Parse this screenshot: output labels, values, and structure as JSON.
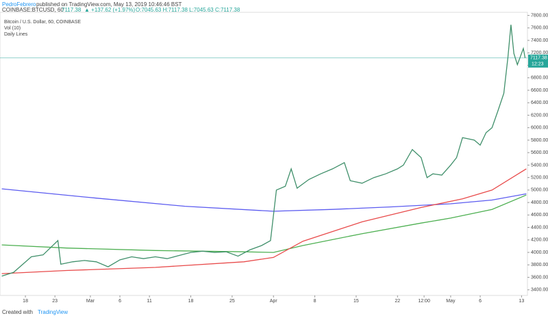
{
  "header": {
    "author": "PedroFebrero",
    "published": "published on TradingView.com, May 13, 2019 10:46:46 BST"
  },
  "footer": {
    "created": "Created with",
    "brand": "TradingView"
  },
  "chart_data": {
    "type": "line",
    "symbol": "COINBASE:BTCUSD, 60",
    "change": "▲ +137.62 (+1.97%)",
    "ohlc": "O:7045.63 H:7117.38 L:7045.63 C:7117.38",
    "title": "Bitcoin / U.S. Dollar, 60, COINBASE",
    "indicators": [
      "Vol (10)",
      "Daily Lines"
    ],
    "last_price": 7117.38,
    "countdown": "12:23",
    "xlim": [
      13.7,
      103
    ],
    "xticks": [
      {
        "value": 18,
        "label": "18"
      },
      {
        "value": 23,
        "label": "23"
      },
      {
        "value": 29,
        "label": "Mar"
      },
      {
        "value": 34,
        "label": "6"
      },
      {
        "value": 39,
        "label": "11"
      },
      {
        "value": 46,
        "label": "18"
      },
      {
        "value": 53,
        "label": "25"
      },
      {
        "value": 60,
        "label": "Apr"
      },
      {
        "value": 67,
        "label": "8"
      },
      {
        "value": 74,
        "label": "15"
      },
      {
        "value": 81,
        "label": "22"
      },
      {
        "value": 85.5,
        "label": "12:00"
      },
      {
        "value": 90,
        "label": "May"
      },
      {
        "value": 95,
        "label": "6"
      },
      {
        "value": 102,
        "label": "13"
      }
    ],
    "ylim": [
      3310,
      7850
    ],
    "yticks": [
      {
        "value": 3400,
        "label": "3400.00"
      },
      {
        "value": 3600,
        "label": "3600.00"
      },
      {
        "value": 3800,
        "label": "3800.00"
      },
      {
        "value": 4000,
        "label": "4000.00"
      },
      {
        "value": 4200,
        "label": "4200.00"
      },
      {
        "value": 4400,
        "label": "4400.00"
      },
      {
        "value": 4600,
        "label": "4600.00"
      },
      {
        "value": 4800,
        "label": "4800.00"
      },
      {
        "value": 5000,
        "label": "5000.00"
      },
      {
        "value": 5200,
        "label": "5200.00"
      },
      {
        "value": 5400,
        "label": "5400.00"
      },
      {
        "value": 5600,
        "label": "5600.00"
      },
      {
        "value": 5800,
        "label": "5800.00"
      },
      {
        "value": 6000,
        "label": "6000.00"
      },
      {
        "value": 6200,
        "label": "6200.00"
      },
      {
        "value": 6400,
        "label": "6400.00"
      },
      {
        "value": 6600,
        "label": "6600.00"
      },
      {
        "value": 6800,
        "label": "6800.00"
      },
      {
        "value": 7000,
        "label": "7000.00"
      },
      {
        "value": 7200,
        "label": "7200.00"
      },
      {
        "value": 7400,
        "label": "7400.00"
      },
      {
        "value": 7600,
        "label": "7600.00"
      },
      {
        "value": 7800,
        "label": "7800.00"
      }
    ],
    "series": [
      {
        "color": "#5b5bf0",
        "x": [
          14,
          30,
          45,
          60,
          70,
          80,
          90,
          97,
          102.8
        ],
        "values": [
          5020,
          4870,
          4740,
          4660,
          4690,
          4730,
          4780,
          4840,
          4940
        ]
      },
      {
        "color": "#4caf50",
        "x": [
          14,
          25,
          40,
          55,
          60,
          65,
          75,
          85,
          90,
          97,
          102.8
        ],
        "values": [
          4120,
          4070,
          4030,
          4010,
          4000,
          4110,
          4300,
          4470,
          4550,
          4690,
          4920
        ]
      },
      {
        "color": "#e84a4a",
        "x": [
          14,
          25,
          40,
          55,
          60,
          65,
          75,
          85,
          92,
          97,
          102.8
        ],
        "values": [
          3660,
          3710,
          3760,
          3850,
          3920,
          4180,
          4490,
          4720,
          4860,
          5000,
          5340
        ]
      },
      {
        "color": "#3f8f6a",
        "x": [
          14,
          16,
          19,
          21,
          23.5,
          24,
          26,
          28,
          30,
          32,
          34,
          36,
          38,
          40,
          42,
          44,
          46,
          48,
          50,
          52,
          54,
          56,
          58,
          59.5,
          60.5,
          62,
          63,
          64,
          66,
          68,
          70,
          72,
          73,
          75,
          77,
          79,
          81,
          82,
          83.5,
          85,
          86,
          87,
          88.5,
          90,
          91,
          92,
          94,
          95,
          96,
          97,
          98,
          99,
          99.7,
          100.2,
          100.7,
          101.3,
          102.3,
          102.6
        ],
        "values": [
          3620,
          3680,
          3930,
          3960,
          4190,
          3810,
          3850,
          3870,
          3850,
          3770,
          3880,
          3930,
          3900,
          3930,
          3900,
          3950,
          4000,
          4020,
          4000,
          4010,
          3940,
          4040,
          4110,
          4190,
          5000,
          5060,
          5340,
          5030,
          5170,
          5260,
          5340,
          5440,
          5150,
          5110,
          5200,
          5260,
          5340,
          5400,
          5650,
          5520,
          5200,
          5260,
          5240,
          5400,
          5520,
          5840,
          5800,
          5720,
          5920,
          6000,
          6270,
          6550,
          7130,
          7650,
          7190,
          7010,
          7270,
          7117.38
        ]
      }
    ]
  }
}
